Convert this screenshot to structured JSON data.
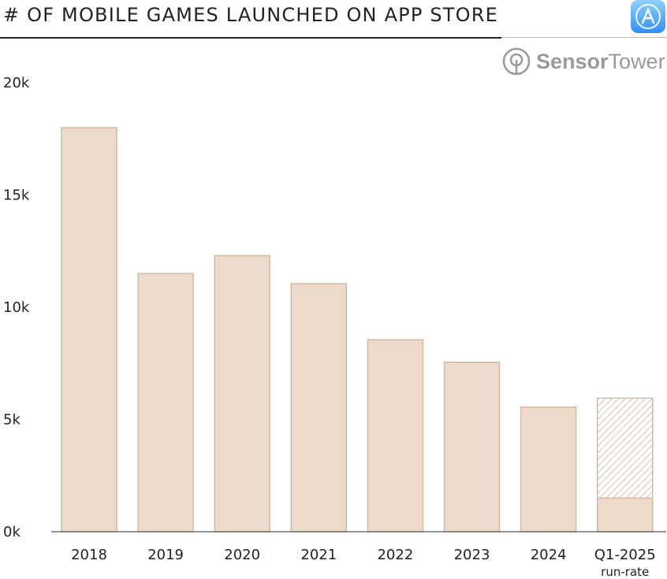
{
  "header": {
    "title": "# OF MOBILE GAMES LAUNCHED ON APP STORE",
    "logo_text_bold": "Sensor",
    "logo_text_light": "Tower"
  },
  "chart_data": {
    "type": "bar",
    "title": "# OF MOBILE GAMES LAUNCHED ON APP STORE",
    "xlabel": "",
    "ylabel": "",
    "categories": [
      "2018",
      "2019",
      "2020",
      "2021",
      "2022",
      "2023",
      "2024",
      "Q1-2025"
    ],
    "category_sublabels": [
      "",
      "",
      "",
      "",
      "",
      "",
      "",
      "run-rate"
    ],
    "values": [
      18000,
      11500,
      12300,
      11050,
      8550,
      7550,
      5550,
      1500
    ],
    "run_rate_value": 5950,
    "run_rate_category": "Q1-2025",
    "ylim": [
      0,
      20000
    ],
    "yticks": [
      0,
      5000,
      10000,
      15000,
      20000
    ],
    "ytick_labels": [
      "0k",
      "5k",
      "10k",
      "15k",
      "20k"
    ],
    "grid": false,
    "colors": {
      "bar_fill": "#ecdacb",
      "bar_stroke": "#d5b99f",
      "axis": "#555555"
    }
  }
}
